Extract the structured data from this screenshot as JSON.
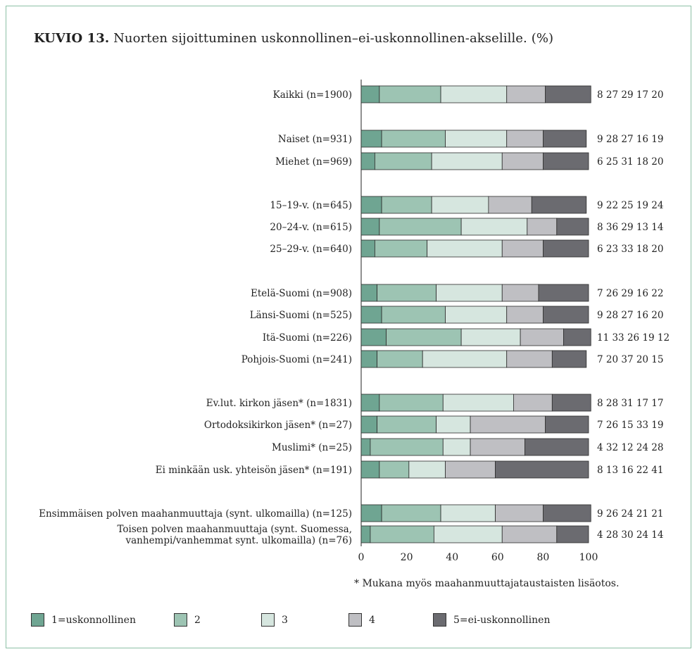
{
  "title_bold": "KUVIO 13.",
  "title_rest": " Nuorten sijoittuminen uskonnollinen–ei-uskonnollinen-akselille. (%)",
  "note": "* Mukana myös maahanmuuttajataustaisten lisäotos.",
  "colors": [
    "#6fa592",
    "#9dc4b3",
    "#d6e6df",
    "#bfbfc3",
    "#6b6b70"
  ],
  "chart_data": {
    "type": "bar",
    "orientation": "horizontal",
    "stacked": true,
    "unit": "%",
    "xlim": [
      0,
      100
    ],
    "xticks": [
      0,
      20,
      40,
      60,
      80,
      100
    ],
    "series_names": [
      "1=uskonnollinen",
      "2",
      "3",
      "4",
      "5=ei-uskonnollinen"
    ],
    "rows": [
      {
        "label": [
          "Kaikki (n=1900)"
        ],
        "values": [
          8,
          27,
          29,
          17,
          20
        ],
        "value_text": "8 27 29 17 20"
      },
      {
        "label": [
          "Naiset (n=931)"
        ],
        "values": [
          9,
          28,
          27,
          16,
          19
        ],
        "value_text": "9 28 27 16 19"
      },
      {
        "label": [
          "Miehet (n=969)"
        ],
        "values": [
          6,
          25,
          31,
          18,
          20
        ],
        "value_text": "6 25 31 18 20"
      },
      {
        "label": [
          "15–19-v. (n=645)"
        ],
        "values": [
          9,
          22,
          25,
          19,
          24
        ],
        "value_text": "9 22 25 19 24"
      },
      {
        "label": [
          "20–24-v. (n=615)"
        ],
        "values": [
          8,
          36,
          29,
          13,
          14
        ],
        "value_text": "8 36 29 13 14"
      },
      {
        "label": [
          "25–29-v. (n=640)"
        ],
        "values": [
          6,
          23,
          33,
          18,
          20
        ],
        "value_text": "6 23 33 18 20"
      },
      {
        "label": [
          "Etelä-Suomi (n=908)"
        ],
        "values": [
          7,
          26,
          29,
          16,
          22
        ],
        "value_text": "7 26 29 16 22"
      },
      {
        "label": [
          "Länsi-Suomi (n=525)"
        ],
        "values": [
          9,
          28,
          27,
          16,
          20
        ],
        "value_text": "9 28 27 16 20"
      },
      {
        "label": [
          "Itä-Suomi (n=226)"
        ],
        "values": [
          11,
          33,
          26,
          19,
          12
        ],
        "value_text": "11 33 26 19 12"
      },
      {
        "label": [
          "Pohjois-Suomi (n=241)"
        ],
        "values": [
          7,
          20,
          37,
          20,
          15
        ],
        "value_text": "7 20 37 20 15"
      },
      {
        "label": [
          "Ev.lut. kirkon jäsen* (n=1831)"
        ],
        "values": [
          8,
          28,
          31,
          17,
          17
        ],
        "value_text": "8 28 31 17 17"
      },
      {
        "label": [
          "Ortodoksikirkon jäsen* (n=27)"
        ],
        "values": [
          7,
          26,
          15,
          33,
          19
        ],
        "value_text": "7 26 15 33 19"
      },
      {
        "label": [
          "Muslimi* (n=25)"
        ],
        "values": [
          4,
          32,
          12,
          24,
          28
        ],
        "value_text": "4 32 12 24 28"
      },
      {
        "label": [
          "Ei minkään usk. yhteisön jäsen* (n=191)"
        ],
        "values": [
          8,
          13,
          16,
          22,
          41
        ],
        "value_text": "8 13 16 22 41"
      },
      {
        "label": [
          "Ensimmäisen polven maahanmuuttaja (synt. ulkomailla) (n=125)"
        ],
        "values": [
          9,
          26,
          24,
          21,
          21
        ],
        "value_text": "9 26 24 21 21"
      },
      {
        "label": [
          "Toisen polven maahanmuuttaja (synt. Suomessa,",
          "vanhempi/vanhemmat synt. ulkomailla) (n=76)"
        ],
        "values": [
          4,
          28,
          30,
          24,
          14
        ],
        "value_text": "4 28 30 24 14"
      }
    ]
  }
}
